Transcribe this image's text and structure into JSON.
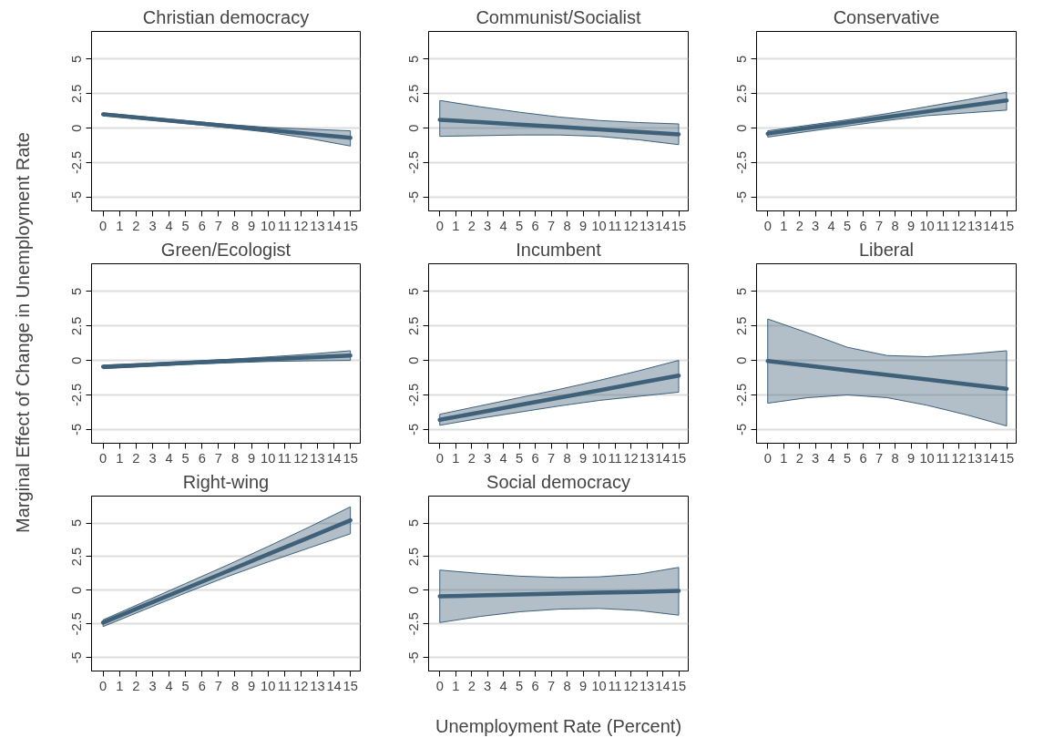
{
  "chart_data": [
    {
      "type": "line",
      "title": "Christian democracy",
      "x": [
        0,
        2.5,
        5,
        7.5,
        10,
        12.5,
        15
      ],
      "series": [
        {
          "color": "#3e6079",
          "values": [
            1.0,
            0.72,
            0.43,
            0.15,
            -0.13,
            -0.42,
            -0.7
          ],
          "lower": [
            0.9,
            0.62,
            0.33,
            0.03,
            -0.3,
            -0.75,
            -1.3
          ],
          "upper": [
            1.1,
            0.82,
            0.54,
            0.27,
            0.05,
            -0.08,
            -0.2
          ]
        }
      ],
      "xlim": [
        -0.7,
        15.6
      ],
      "ylim": [
        -6,
        7
      ],
      "xticks": [
        0,
        1,
        2,
        3,
        4,
        5,
        6,
        7,
        8,
        9,
        10,
        11,
        12,
        13,
        14,
        15
      ],
      "yticks": [
        -5,
        -2.5,
        0,
        2.5,
        5
      ],
      "grid": "y"
    },
    {
      "type": "line",
      "title": "Communist/Socialist",
      "x": [
        0,
        2.5,
        5,
        7.5,
        10,
        12.5,
        15
      ],
      "series": [
        {
          "color": "#3e6079",
          "values": [
            0.6,
            0.43,
            0.25,
            0.08,
            -0.1,
            -0.28,
            -0.45
          ],
          "lower": [
            -0.6,
            -0.55,
            -0.5,
            -0.5,
            -0.6,
            -0.85,
            -1.2
          ],
          "upper": [
            2.0,
            1.55,
            1.15,
            0.8,
            0.55,
            0.4,
            0.3
          ]
        }
      ],
      "xlim": [
        -0.7,
        15.6
      ],
      "ylim": [
        -6,
        7
      ],
      "xticks": [
        0,
        1,
        2,
        3,
        4,
        5,
        6,
        7,
        8,
        9,
        10,
        11,
        12,
        13,
        14,
        15
      ],
      "yticks": [
        -5,
        -2.5,
        0,
        2.5,
        5
      ],
      "grid": "y"
    },
    {
      "type": "line",
      "title": "Conservative",
      "x": [
        0,
        2.5,
        5,
        7.5,
        10,
        12.5,
        15
      ],
      "series": [
        {
          "color": "#3e6079",
          "values": [
            -0.4,
            0,
            0.4,
            0.8,
            1.2,
            1.6,
            2.0
          ],
          "lower": [
            -0.65,
            -0.25,
            0.15,
            0.55,
            0.9,
            1.1,
            1.3
          ],
          "upper": [
            -0.2,
            0.2,
            0.6,
            1.05,
            1.55,
            2.05,
            2.6
          ]
        }
      ],
      "xlim": [
        -0.7,
        15.6
      ],
      "ylim": [
        -6,
        7
      ],
      "xticks": [
        0,
        1,
        2,
        3,
        4,
        5,
        6,
        7,
        8,
        9,
        10,
        11,
        12,
        13,
        14,
        15
      ],
      "yticks": [
        -5,
        -2.5,
        0,
        2.5,
        5
      ],
      "grid": "y"
    },
    {
      "type": "line",
      "title": "Green/Ecologist",
      "ylabel": "Marginal Effect of Change in Unemployment Rate",
      "x": [
        0,
        2.5,
        5,
        7.5,
        10,
        12.5,
        15
      ],
      "series": [
        {
          "color": "#3e6079",
          "values": [
            -0.45,
            -0.32,
            -0.18,
            -0.05,
            0.08,
            0.22,
            0.35
          ],
          "lower": [
            -0.6,
            -0.45,
            -0.3,
            -0.18,
            -0.08,
            -0.03,
            0.0
          ],
          "upper": [
            -0.35,
            -0.22,
            -0.08,
            0.07,
            0.25,
            0.45,
            0.7
          ]
        }
      ],
      "xlim": [
        -0.7,
        15.6
      ],
      "ylim": [
        -6,
        7
      ],
      "xticks": [
        0,
        1,
        2,
        3,
        4,
        5,
        6,
        7,
        8,
        9,
        10,
        11,
        12,
        13,
        14,
        15
      ],
      "yticks": [
        -5,
        -2.5,
        0,
        2.5,
        5
      ],
      "grid": "y"
    },
    {
      "type": "line",
      "title": "Incumbent",
      "x": [
        0,
        2.5,
        5,
        7.5,
        10,
        12.5,
        15
      ],
      "series": [
        {
          "color": "#3e6079",
          "values": [
            -4.3,
            -3.77,
            -3.23,
            -2.7,
            -2.17,
            -1.63,
            -1.1
          ],
          "lower": [
            -4.7,
            -4.2,
            -3.75,
            -3.3,
            -2.9,
            -2.6,
            -2.3
          ],
          "upper": [
            -3.9,
            -3.3,
            -2.7,
            -2.1,
            -1.45,
            -0.75,
            0.0
          ]
        }
      ],
      "xlim": [
        -0.7,
        15.6
      ],
      "ylim": [
        -6,
        7
      ],
      "xticks": [
        0,
        1,
        2,
        3,
        4,
        5,
        6,
        7,
        8,
        9,
        10,
        11,
        12,
        13,
        14,
        15
      ],
      "yticks": [
        -5,
        -2.5,
        0,
        2.5,
        5
      ],
      "grid": "y"
    },
    {
      "type": "line",
      "title": "Liberal",
      "x": [
        0,
        2.5,
        5,
        7.5,
        10,
        12.5,
        15
      ],
      "series": [
        {
          "color": "#3e6079",
          "values": [
            -0.05,
            -0.38,
            -0.72,
            -1.05,
            -1.38,
            -1.72,
            -2.05
          ],
          "lower": [
            -3.1,
            -2.7,
            -2.5,
            -2.7,
            -3.25,
            -3.95,
            -4.75
          ],
          "upper": [
            3.0,
            2.0,
            0.95,
            0.35,
            0.27,
            0.45,
            0.7
          ]
        }
      ],
      "xlim": [
        -0.7,
        15.6
      ],
      "ylim": [
        -6,
        7
      ],
      "xticks": [
        0,
        1,
        2,
        3,
        4,
        5,
        6,
        7,
        8,
        9,
        10,
        11,
        12,
        13,
        14,
        15
      ],
      "yticks": [
        -5,
        -2.5,
        0,
        2.5,
        5
      ],
      "grid": "y"
    },
    {
      "type": "line",
      "title": "Right-wing",
      "x": [
        0,
        2.5,
        5,
        7.5,
        10,
        12.5,
        15
      ],
      "series": [
        {
          "color": "#3e6079",
          "values": [
            -2.4,
            -1.13,
            0.13,
            1.4,
            2.67,
            3.93,
            5.2
          ],
          "lower": [
            -2.7,
            -1.45,
            -0.2,
            1.0,
            2.1,
            3.15,
            4.2
          ],
          "upper": [
            -2.2,
            -0.85,
            0.5,
            1.85,
            3.25,
            4.7,
            6.2
          ]
        }
      ],
      "xlim": [
        -0.7,
        15.6
      ],
      "ylim": [
        -6,
        7
      ],
      "xticks": [
        0,
        1,
        2,
        3,
        4,
        5,
        6,
        7,
        8,
        9,
        10,
        11,
        12,
        13,
        14,
        15
      ],
      "yticks": [
        -5,
        -2.5,
        0,
        2.5,
        5
      ],
      "grid": "y"
    },
    {
      "type": "line",
      "title": "Social democracy",
      "xlabel": "Unemployment Rate (Percent)",
      "x": [
        0,
        2.5,
        5,
        7.5,
        10,
        12.5,
        15
      ],
      "series": [
        {
          "color": "#3e6079",
          "values": [
            -0.45,
            -0.38,
            -0.32,
            -0.25,
            -0.18,
            -0.12,
            -0.05
          ],
          "lower": [
            -2.4,
            -1.95,
            -1.6,
            -1.4,
            -1.35,
            -1.5,
            -1.85
          ],
          "upper": [
            1.5,
            1.25,
            1.05,
            0.95,
            1.0,
            1.2,
            1.7
          ]
        }
      ],
      "xlim": [
        -0.7,
        15.6
      ],
      "ylim": [
        -6,
        7
      ],
      "xticks": [
        0,
        1,
        2,
        3,
        4,
        5,
        6,
        7,
        8,
        9,
        10,
        11,
        12,
        13,
        14,
        15
      ],
      "yticks": [
        -5,
        -2.5,
        0,
        2.5,
        5
      ],
      "grid": "y"
    }
  ]
}
